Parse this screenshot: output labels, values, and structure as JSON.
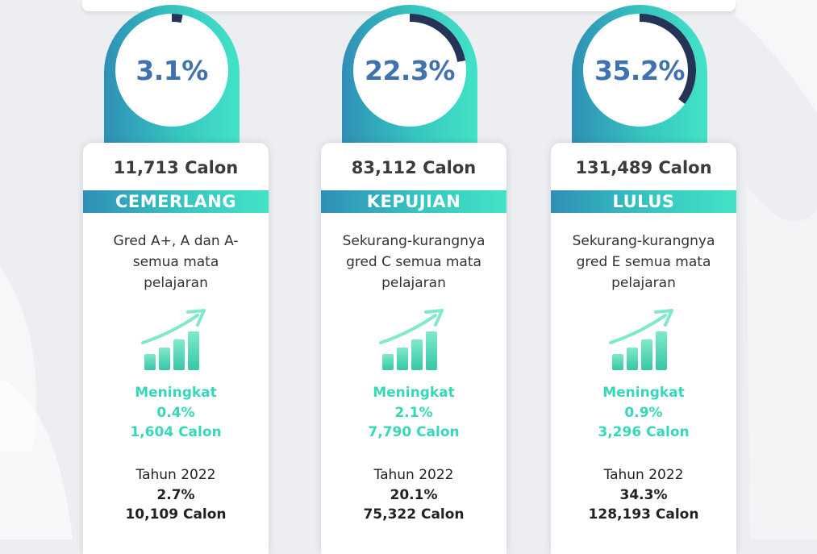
{
  "columns": [
    {
      "percent": "3.1%",
      "percent_value": 3.1,
      "count": "11,713 Calon",
      "label": "CEMERLANG",
      "description": [
        "Gred A+, A dan A-",
        "semua mata",
        "pelajaran"
      ],
      "increase_label": "Meningkat",
      "increase_percent": "0.4%",
      "increase_count": "1,604 Calon",
      "prev_year_label": "Tahun 2022",
      "prev_percent": "2.7%",
      "prev_count": "10,109 Calon"
    },
    {
      "percent": "22.3%",
      "percent_value": 22.3,
      "count": "83,112 Calon",
      "label": "KEPUJIAN",
      "description": [
        "Sekurang-kurangnya",
        "gred C semua mata",
        "pelajaran"
      ],
      "increase_label": "Meningkat",
      "increase_percent": "2.1%",
      "increase_count": "7,790 Calon",
      "prev_year_label": "Tahun 2022",
      "prev_percent": "20.1%",
      "prev_count": "75,322 Calon"
    },
    {
      "percent": "35.2%",
      "percent_value": 35.2,
      "count": "131,489 Calon",
      "label": "LULUS",
      "description": [
        "Sekurang-kurangnya",
        "gred E semua mata",
        "pelajaran"
      ],
      "increase_label": "Meningkat",
      "increase_percent": "0.9%",
      "increase_count": "3,296 Calon",
      "prev_year_label": "Tahun 2022",
      "prev_percent": "34.3%",
      "prev_count": "128,193 Calon"
    }
  ],
  "icons": {
    "growth": "growth-chart-arrow-icon"
  },
  "colors": {
    "gradient_start": "#2f8fb6",
    "gradient_end": "#43e3c7",
    "donut_arc": "#253357",
    "percent_text": "#3f72ae",
    "increase_text": "#37d7b8"
  }
}
